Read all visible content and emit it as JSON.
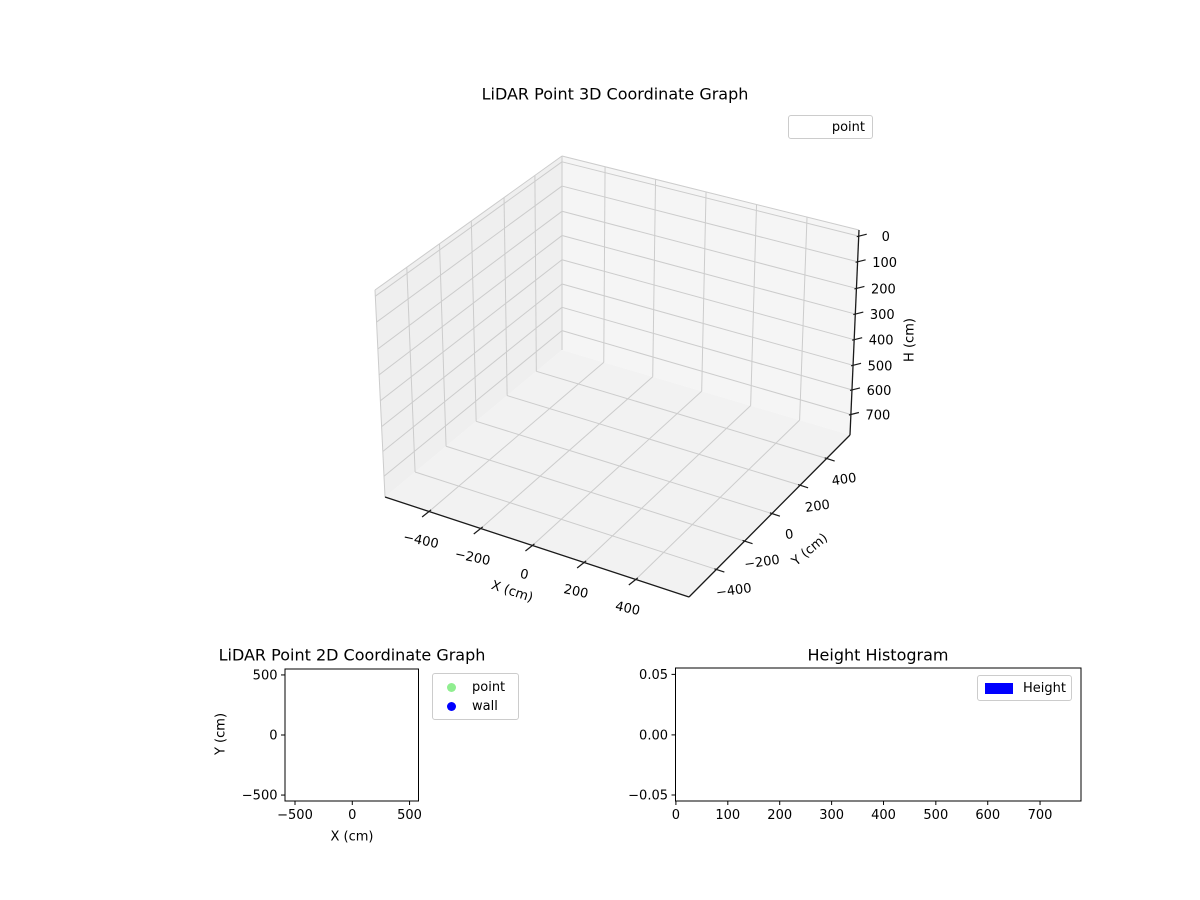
{
  "figure": {
    "background": "#ffffff"
  },
  "plot3d": {
    "title": "LiDAR Point 3D Coordinate Graph",
    "xlabel": "X (cm)",
    "ylabel": "Y (cm)",
    "zlabel": "H (cm)",
    "xtick_labels": [
      "−400",
      "−200",
      "0",
      "200",
      "400"
    ],
    "ytick_labels": [
      "−400",
      "−200",
      "0",
      "200",
      "400"
    ],
    "ztick_labels": [
      "0",
      "100",
      "200",
      "300",
      "400",
      "500",
      "600",
      "700"
    ],
    "legend": {
      "items": [
        {
          "label": "point",
          "marker": "none"
        }
      ]
    }
  },
  "plot2d": {
    "title": "LiDAR Point 2D Coordinate Graph",
    "xlabel": "X (cm)",
    "ylabel": "Y (cm)",
    "xtick_labels": [
      "−500",
      "0",
      "500"
    ],
    "ytick_labels": [
      "500",
      "0",
      "−500"
    ],
    "legend": {
      "items": [
        {
          "label": "point",
          "color": "#90EE90"
        },
        {
          "label": "wall",
          "color": "#0000FF"
        }
      ]
    }
  },
  "hist": {
    "title": "Height Histogram",
    "xtick_labels": [
      "0",
      "100",
      "200",
      "300",
      "400",
      "500",
      "600",
      "700"
    ],
    "ytick_labels": [
      "0.05",
      "0.00",
      "−0.05"
    ],
    "legend": {
      "items": [
        {
          "label": "Height",
          "color": "#0000FF"
        }
      ]
    }
  },
  "chart_data": [
    {
      "type": "scatter",
      "subtype": "scatter3d",
      "title": "LiDAR Point 3D Coordinate Graph",
      "xlabel": "X (cm)",
      "ylabel": "Y (cm)",
      "zlabel": "H (cm)",
      "xticks": [
        -400,
        -200,
        0,
        200,
        400
      ],
      "yticks": [
        -400,
        -200,
        0,
        200,
        400
      ],
      "zticks": [
        0,
        100,
        200,
        300,
        400,
        500,
        600,
        700
      ],
      "zaxis_inverted": true,
      "grid": true,
      "legend_position": "upper right",
      "series": [
        {
          "name": "point",
          "points": []
        }
      ]
    },
    {
      "type": "scatter",
      "title": "LiDAR Point 2D Coordinate Graph",
      "xlabel": "X (cm)",
      "ylabel": "Y (cm)",
      "xticks": [
        -500,
        0,
        500
      ],
      "yticks": [
        500,
        0,
        -500
      ],
      "xlim": [
        -583,
        583
      ],
      "ylim": [
        -583,
        583
      ],
      "grid": false,
      "legend_position": "outside right",
      "series": [
        {
          "name": "point",
          "color": "#90EE90",
          "points": []
        },
        {
          "name": "wall",
          "color": "#0000FF",
          "points": []
        }
      ]
    },
    {
      "type": "bar",
      "subtype": "histogram",
      "title": "Height Histogram",
      "xlabel": "",
      "ylabel": "",
      "xticks": [
        0,
        100,
        200,
        300,
        400,
        500,
        600,
        700
      ],
      "yticks": [
        0.05,
        0.0,
        -0.05
      ],
      "xlim": [
        0,
        781
      ],
      "ylim": [
        -0.055,
        0.057
      ],
      "grid": false,
      "legend_position": "upper right",
      "series": [
        {
          "name": "Height",
          "color": "#0000FF",
          "values": []
        }
      ]
    }
  ]
}
